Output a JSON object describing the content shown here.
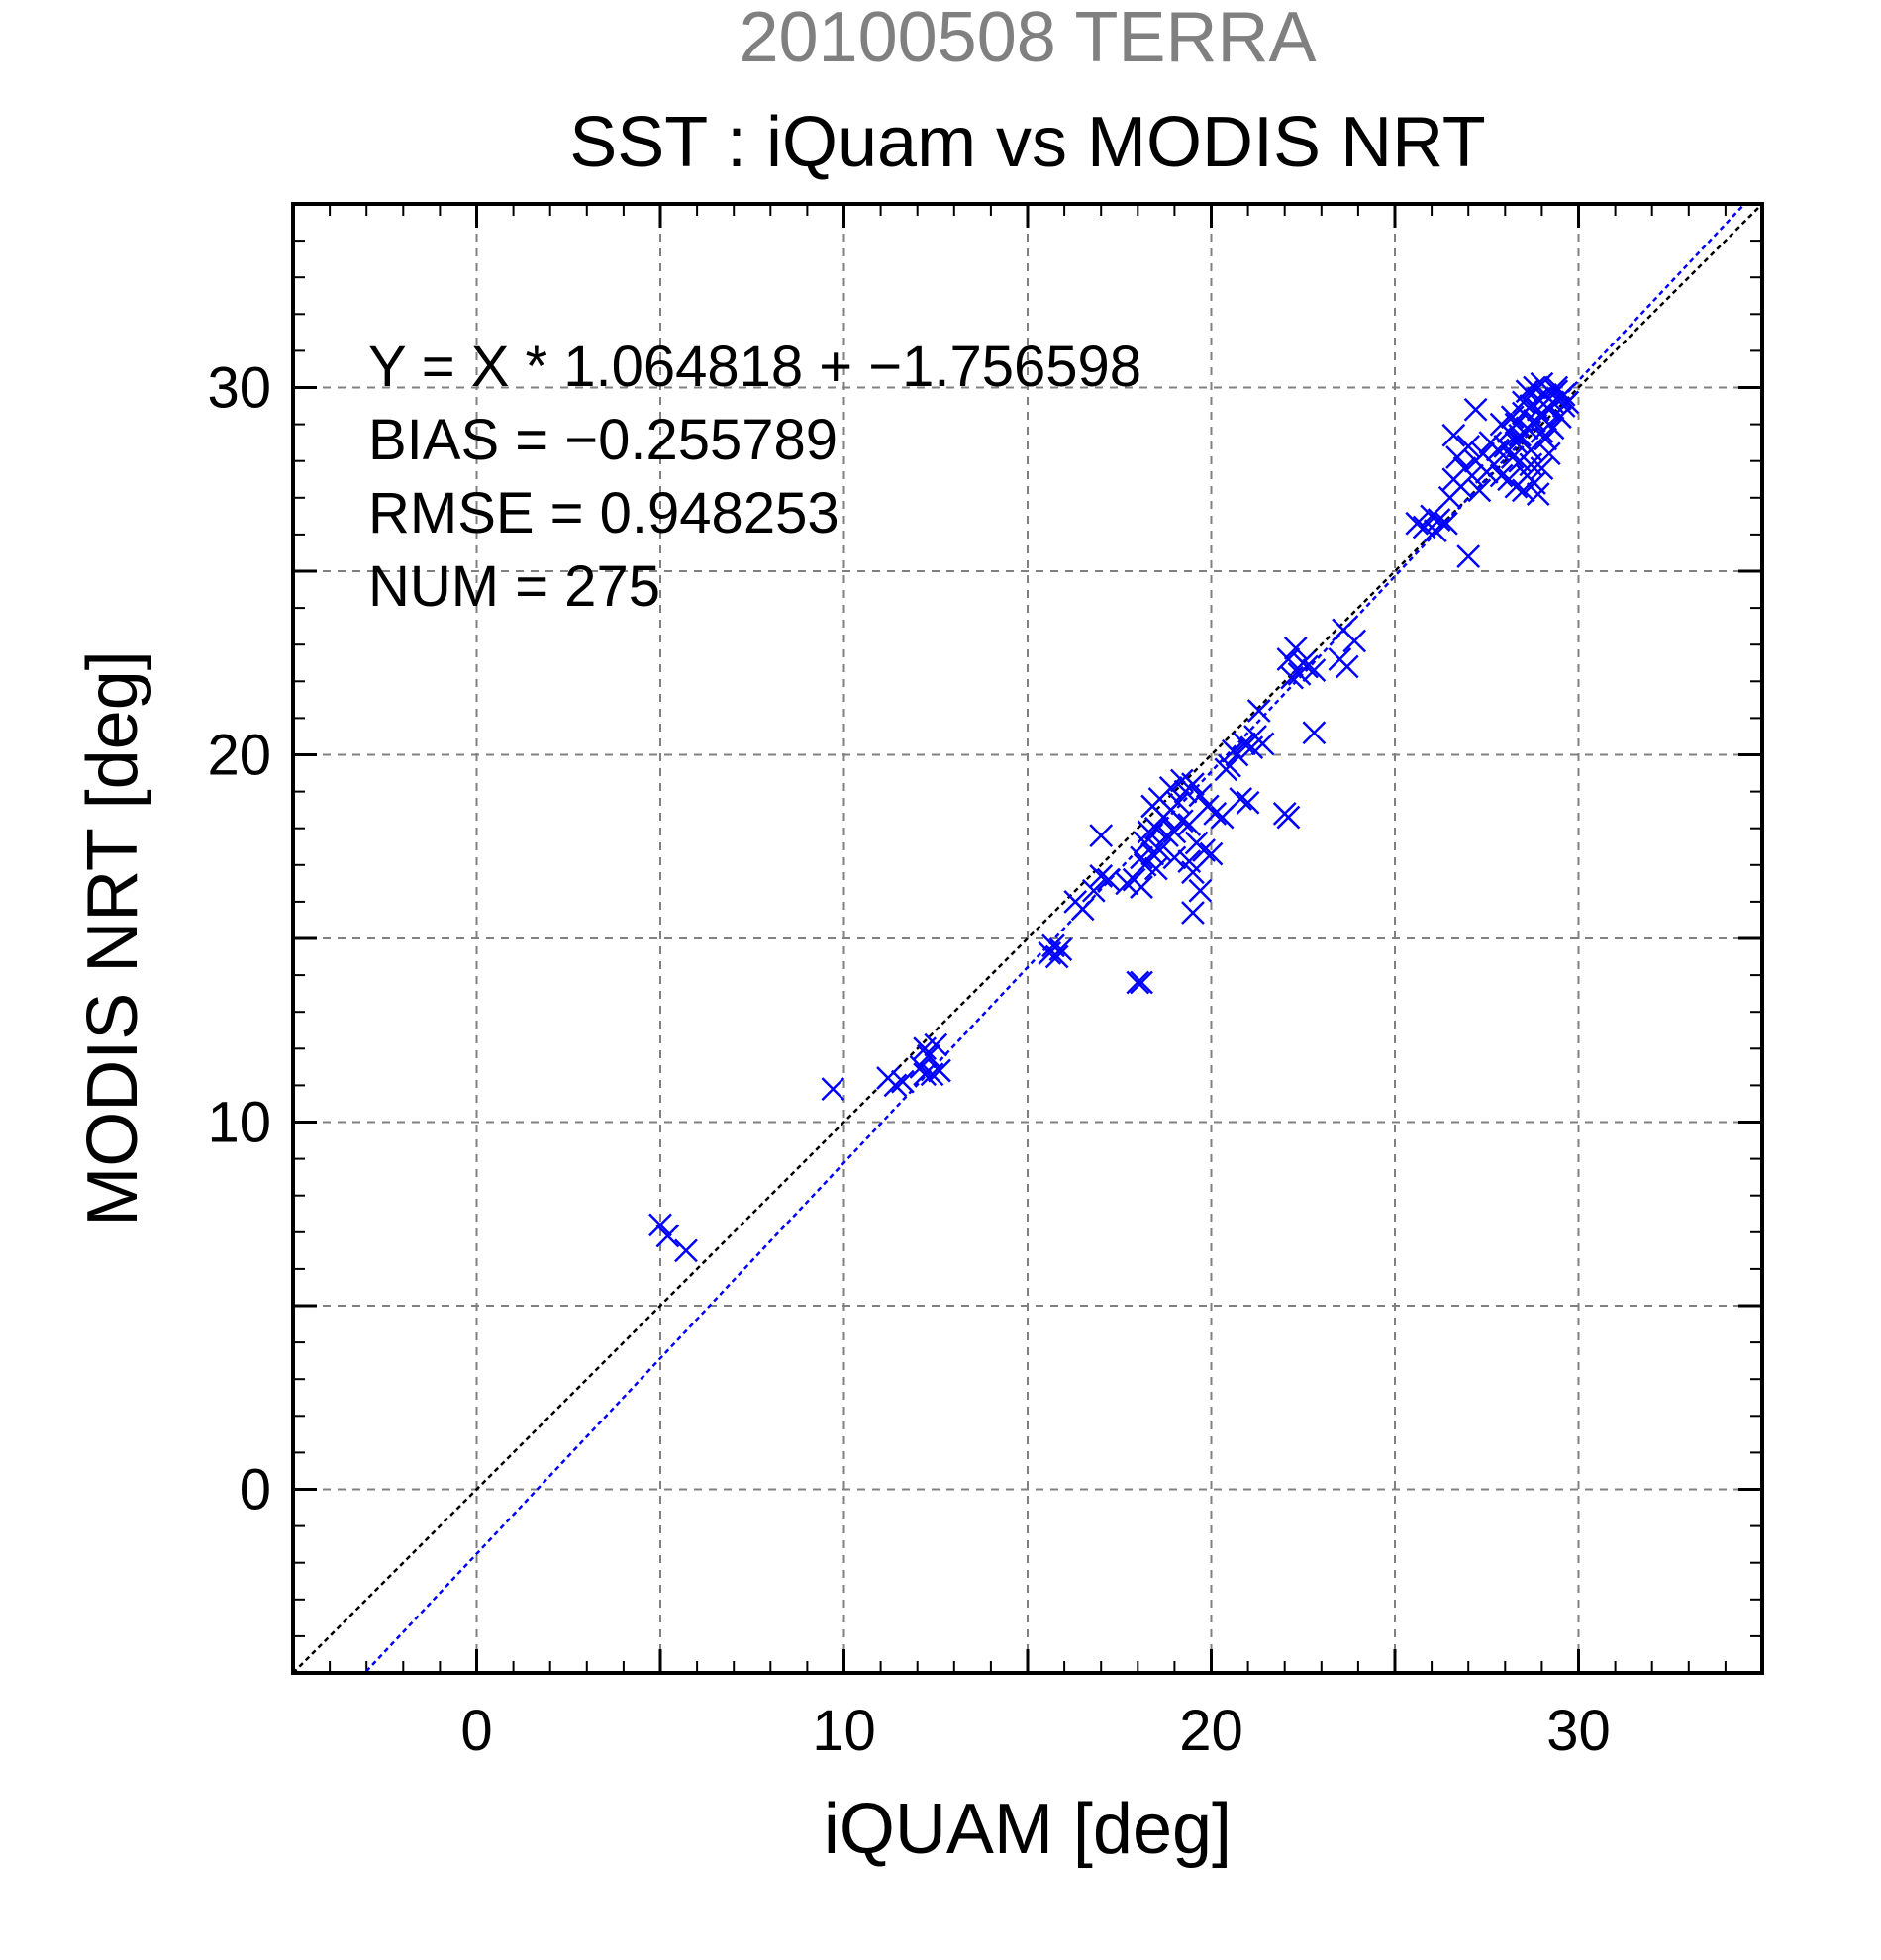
{
  "chart_data": {
    "type": "scatter",
    "supertitle": "20100508 TERRA",
    "title": "SST : iQuam vs MODIS NRT",
    "xlabel": "iQUAM [deg]",
    "ylabel": "MODIS NRT [deg]",
    "xlim": [
      -5,
      35
    ],
    "ylim": [
      -5,
      35
    ],
    "xticks": [
      0,
      10,
      20,
      30
    ],
    "yticks": [
      0,
      10,
      20,
      30
    ],
    "grid": true,
    "stats": [
      "Y = X * 1.064818 + −1.756598",
      "BIAS = −0.255789",
      "RMSE = 0.948253",
      "NUM = 275"
    ],
    "regression": {
      "slope": 1.064818,
      "intercept": -1.756598
    },
    "colors": {
      "points": "#0000ff",
      "fit_line": "#0000ff",
      "identity_line": "#000000",
      "supertitle": "#808080",
      "grid": "#808080"
    },
    "points": [
      [
        5.0,
        7.2
      ],
      [
        5.2,
        6.9
      ],
      [
        5.7,
        6.5
      ],
      [
        9.7,
        10.9
      ],
      [
        11.2,
        11.2
      ],
      [
        11.4,
        11.0
      ],
      [
        11.6,
        11.1
      ],
      [
        12.1,
        11.5
      ],
      [
        12.2,
        12.0
      ],
      [
        12.3,
        11.8
      ],
      [
        12.4,
        11.3
      ],
      [
        12.5,
        12.1
      ],
      [
        12.6,
        11.4
      ],
      [
        12.2,
        11.3
      ],
      [
        15.6,
        14.6
      ],
      [
        15.8,
        14.5
      ],
      [
        15.7,
        14.8
      ],
      [
        15.9,
        14.7
      ],
      [
        16.3,
        16.0
      ],
      [
        16.5,
        15.8
      ],
      [
        16.8,
        16.3
      ],
      [
        17.0,
        17.8
      ],
      [
        17.0,
        16.7
      ],
      [
        17.2,
        16.6
      ],
      [
        17.7,
        16.5
      ],
      [
        17.9,
        16.6
      ],
      [
        18.1,
        16.4
      ],
      [
        18.0,
        13.8
      ],
      [
        18.1,
        13.8
      ],
      [
        18.1,
        17.2
      ],
      [
        18.2,
        17.6
      ],
      [
        18.3,
        17.9
      ],
      [
        18.4,
        17.3
      ],
      [
        18.5,
        18.0
      ],
      [
        18.6,
        17.4
      ],
      [
        18.7,
        18.3
      ],
      [
        18.8,
        17.8
      ],
      [
        18.9,
        18.5
      ],
      [
        19.0,
        17.9
      ],
      [
        19.1,
        18.7
      ],
      [
        19.2,
        18.2
      ],
      [
        19.3,
        19.0
      ],
      [
        19.4,
        18.1
      ],
      [
        19.5,
        19.2
      ],
      [
        19.6,
        17.6
      ],
      [
        19.7,
        18.9
      ],
      [
        19.8,
        17.4
      ],
      [
        19.9,
        18.6
      ],
      [
        20.0,
        17.3
      ],
      [
        20.1,
        18.4
      ],
      [
        18.4,
        18.6
      ],
      [
        18.6,
        18.8
      ],
      [
        18.9,
        19.1
      ],
      [
        19.2,
        19.3
      ],
      [
        19.0,
        17.2
      ],
      [
        19.4,
        17.1
      ],
      [
        19.5,
        15.7
      ],
      [
        19.7,
        16.3
      ],
      [
        19.5,
        16.8
      ],
      [
        18.2,
        17.0
      ],
      [
        18.5,
        16.9
      ],
      [
        20.3,
        18.3
      ],
      [
        20.5,
        19.7
      ],
      [
        20.6,
        20.1
      ],
      [
        20.8,
        18.8
      ],
      [
        20.9,
        20.3
      ],
      [
        21.0,
        18.7
      ],
      [
        21.1,
        20.2
      ],
      [
        21.2,
        20.5
      ],
      [
        21.4,
        20.3
      ],
      [
        21.3,
        21.2
      ],
      [
        20.7,
        20.0
      ],
      [
        20.4,
        19.6
      ],
      [
        22.0,
        18.4
      ],
      [
        22.1,
        18.3
      ],
      [
        22.1,
        22.6
      ],
      [
        22.3,
        22.9
      ],
      [
        22.4,
        22.2
      ],
      [
        22.5,
        22.5
      ],
      [
        22.6,
        22.4
      ],
      [
        22.8,
        22.3
      ],
      [
        22.2,
        22.1
      ],
      [
        22.8,
        20.6
      ],
      [
        23.5,
        22.6
      ],
      [
        23.7,
        22.4
      ],
      [
        23.9,
        23.1
      ],
      [
        23.6,
        23.4
      ],
      [
        25.6,
        26.3
      ],
      [
        25.8,
        26.2
      ],
      [
        26.0,
        26.5
      ],
      [
        26.2,
        26.4
      ],
      [
        26.4,
        26.3
      ],
      [
        26.1,
        26.1
      ],
      [
        26.5,
        27.0
      ],
      [
        26.6,
        27.5
      ],
      [
        26.7,
        28.1
      ],
      [
        26.8,
        27.3
      ],
      [
        26.9,
        27.8
      ],
      [
        27.0,
        28.4
      ],
      [
        27.1,
        27.6
      ],
      [
        27.2,
        28.0
      ],
      [
        27.3,
        27.2
      ],
      [
        27.4,
        28.2
      ],
      [
        27.5,
        27.7
      ],
      [
        27.6,
        28.5
      ],
      [
        27.7,
        27.9
      ],
      [
        27.8,
        28.3
      ],
      [
        27.0,
        25.4
      ],
      [
        27.2,
        29.4
      ],
      [
        26.6,
        28.7
      ],
      [
        27.9,
        27.6
      ],
      [
        28.0,
        28.4
      ],
      [
        28.1,
        28.8
      ],
      [
        28.2,
        28.1
      ],
      [
        28.3,
        29.0
      ],
      [
        28.4,
        28.6
      ],
      [
        28.5,
        29.3
      ],
      [
        28.6,
        28.9
      ],
      [
        28.7,
        29.5
      ],
      [
        28.8,
        29.1
      ],
      [
        28.9,
        29.7
      ],
      [
        29.0,
        29.2
      ],
      [
        29.1,
        29.8
      ],
      [
        29.2,
        29.4
      ],
      [
        29.3,
        29.6
      ],
      [
        29.4,
        29.9
      ],
      [
        29.5,
        29.7
      ],
      [
        29.6,
        29.5
      ],
      [
        28.4,
        28.0
      ],
      [
        28.6,
        27.6
      ],
      [
        28.8,
        27.4
      ],
      [
        29.0,
        27.8
      ],
      [
        29.2,
        28.2
      ],
      [
        28.5,
        27.2
      ],
      [
        28.9,
        27.1
      ],
      [
        28.3,
        27.3
      ],
      [
        28.7,
        28.3
      ],
      [
        29.1,
        28.6
      ],
      [
        29.3,
        28.9
      ],
      [
        28.2,
        29.2
      ],
      [
        28.5,
        29.6
      ],
      [
        28.8,
        30.0
      ],
      [
        29.0,
        30.1
      ],
      [
        29.4,
        30.0
      ],
      [
        29.6,
        29.8
      ],
      [
        28.9,
        29.4
      ],
      [
        28.6,
        29.9
      ],
      [
        29.2,
        29.0
      ],
      [
        27.9,
        29.0
      ],
      [
        28.1,
        27.5
      ],
      [
        28.4,
        28.7
      ],
      [
        29.5,
        29.2
      ],
      [
        29.7,
        29.6
      ],
      [
        29.0,
        28.8
      ],
      [
        28.7,
        27.9
      ],
      [
        28.3,
        28.5
      ]
    ]
  }
}
